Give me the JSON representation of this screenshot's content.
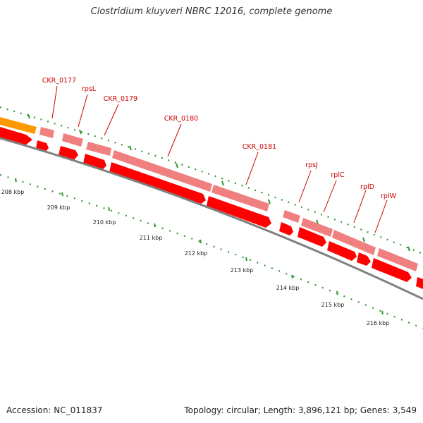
{
  "title": "Clostridium kluyveri NBRC 12016, complete genome",
  "footer": {
    "accession": "Accession: NC_011837",
    "summary": "Topology: circular; Length: 3,896,121 bp; Genes: 3,549"
  },
  "colors": {
    "gene_forward": "#f08080",
    "gene_reverse": "#ff0000",
    "other_feature": "#ff9900",
    "backbone": "#808080",
    "tick": "#339933",
    "label": "#cc0000"
  },
  "scale_labels": [
    "208 kbp",
    "209 kbp",
    "210 kbp",
    "211 kbp",
    "212 kbp",
    "213 kbp",
    "214 kbp",
    "215 kbp",
    "216 kbp"
  ],
  "gene_labels": [
    "CKR_0177",
    "rpsL",
    "CKR_0179",
    "CKR_0180",
    "CKR_0181",
    "rpsJ",
    "rplC",
    "rplD",
    "rplW"
  ]
}
